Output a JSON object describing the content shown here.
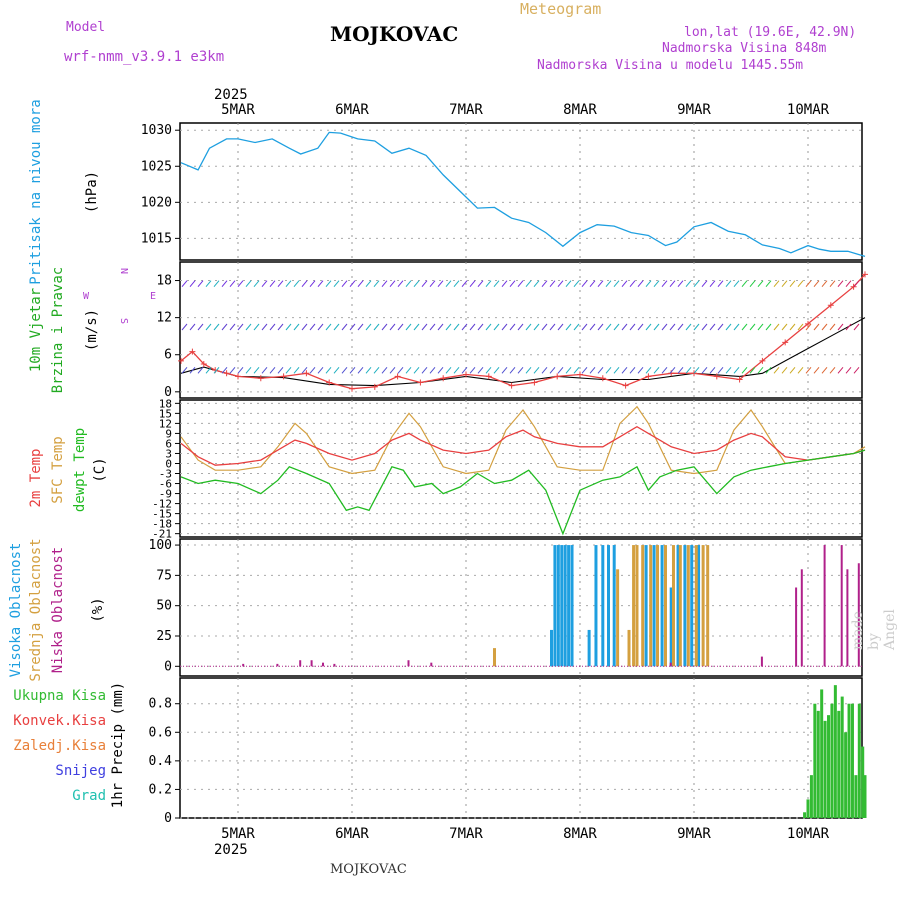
{
  "header": {
    "model_label": "Model",
    "model_name": "wrf-nmm_v3.9.1 e3km",
    "station": "MOJKOVAC",
    "meteogram": "Meteogram",
    "coords": "lon,lat (19.6E, 42.9N)",
    "elev": "Nadmorska Visina 848m",
    "elev_model": "Nadmorska Visina u modelu 1445.55m",
    "footer_station": "MOJKOVAC",
    "watermark": "made by Angel"
  },
  "colors": {
    "pressure": "#1e9fe0",
    "wind_label": "#22aa22",
    "t2m": "#e84040",
    "sfc": "#d4a040",
    "dewpt": "#22bb22",
    "high": "#1e9fe0",
    "mid": "#d4a040",
    "low": "#b0208a",
    "precip": "#33bb33",
    "conv": "#e84040",
    "frozen": "#e8803a",
    "snow": "#4040e0",
    "graup": "#20c0b0",
    "header_purple": "#b040d0",
    "header_gold": "#d8b060"
  },
  "chart_data": [
    {
      "type": "line",
      "panel": "pressure",
      "ylabel_1": "Pritisak na nivou mora",
      "ylabel_2": "(hPa)",
      "x_days": [
        "5MAR",
        "6MAR",
        "7MAR",
        "8MAR",
        "9MAR",
        "10MAR"
      ],
      "year": "2025",
      "ylim": [
        1012,
        1031
      ],
      "yticks": [
        1015,
        1020,
        1025,
        1030
      ],
      "ytick_labels": [
        "1015",
        "1020",
        "1025",
        "1030"
      ],
      "series": [
        {
          "name": "MSLP",
          "x": [
            -0.5,
            -0.35,
            -0.25,
            -0.1,
            0.0,
            0.15,
            0.3,
            0.45,
            0.55,
            0.7,
            0.8,
            0.9,
            1.05,
            1.2,
            1.35,
            1.5,
            1.65,
            1.8,
            1.95,
            2.1,
            2.25,
            2.4,
            2.55,
            2.7,
            2.85,
            3.0,
            3.15,
            3.3,
            3.45,
            3.6,
            3.75,
            3.85,
            4.0,
            4.15,
            4.3,
            4.45,
            4.6,
            4.75,
            4.85,
            5.0,
            5.1,
            5.2,
            5.35,
            5.5
          ],
          "values": [
            1025.5,
            1024.5,
            1027.5,
            1028.8,
            1028.8,
            1028.3,
            1028.8,
            1027.5,
            1026.7,
            1027.5,
            1029.7,
            1029.6,
            1028.8,
            1028.5,
            1026.8,
            1027.5,
            1026.5,
            1023.8,
            1021.5,
            1019.2,
            1019.3,
            1017.8,
            1017.2,
            1015.8,
            1013.9,
            1015.8,
            1016.9,
            1016.7,
            1015.8,
            1015.4,
            1014,
            1014.5,
            1016.6,
            1017.2,
            1016,
            1015.5,
            1014.1,
            1013.6,
            1013,
            1014,
            1013.5,
            1013.2,
            1013.2,
            1012.5
          ]
        }
      ]
    },
    {
      "type": "line",
      "panel": "wind",
      "ylabel_1": "10m Vjetar",
      "ylabel_2": "Brzina i Pravac",
      "ylabel_3": "(m/s)",
      "legend_s": "S",
      "legend_n": "N",
      "legend_w": "W",
      "legend_e": "E",
      "ylim": [
        -1,
        21
      ],
      "yticks": [
        0,
        6,
        12,
        18
      ],
      "ytick_labels": [
        "0",
        "6",
        "12",
        "18"
      ],
      "series": [
        {
          "name": "speed",
          "x": [
            -0.5,
            -0.4,
            -0.3,
            -0.2,
            -0.1,
            0.0,
            0.2,
            0.4,
            0.6,
            0.8,
            1.0,
            1.2,
            1.4,
            1.6,
            1.8,
            2.0,
            2.2,
            2.4,
            2.6,
            2.8,
            3.0,
            3.2,
            3.4,
            3.6,
            3.8,
            4.0,
            4.2,
            4.4,
            4.6,
            4.8,
            5.0,
            5.2,
            5.4,
            5.5
          ],
          "values": [
            5,
            6.5,
            4.5,
            3.5,
            3,
            2.5,
            2.2,
            2.5,
            3,
            1.5,
            0.5,
            0.8,
            2.5,
            1.5,
            2.2,
            2.8,
            2.5,
            1,
            1.5,
            2.5,
            2.8,
            2.2,
            1,
            2.5,
            3,
            3,
            2.5,
            2,
            5,
            8,
            11,
            14,
            17,
            19
          ]
        },
        {
          "name": "gust",
          "x": [
            -0.5,
            -0.3,
            0.0,
            0.4,
            0.8,
            1.2,
            1.6,
            2.0,
            2.4,
            2.8,
            3.2,
            3.6,
            4.0,
            4.4,
            4.6,
            4.8,
            5.0,
            5.2,
            5.4,
            5.5
          ],
          "values": [
            3,
            4,
            2.5,
            2.3,
            1.2,
            1,
            1.5,
            2.5,
            1.5,
            2.5,
            2,
            2,
            3,
            2.5,
            3,
            5,
            7,
            9,
            11,
            12
          ]
        }
      ]
    },
    {
      "type": "line",
      "panel": "temperature",
      "ylabel_1": "2m Temp",
      "ylabel_2": "SFC Temp",
      "ylabel_3": "dewpt Temp",
      "ylabel_4": "(C)",
      "ylim": [
        -22,
        19
      ],
      "yticks": [
        -21,
        -18,
        -15,
        -12,
        -9,
        -6,
        -3,
        0,
        3,
        6,
        9,
        12,
        15,
        18
      ],
      "ytick_labels": [
        "-21",
        "-18",
        "-15",
        "-12",
        "-9",
        "-6",
        "-3",
        "0",
        "3",
        "6",
        "9",
        "12",
        "15",
        "18"
      ],
      "series": [
        {
          "name": "2m Temp",
          "x": [
            -0.5,
            -0.35,
            -0.2,
            0.0,
            0.2,
            0.35,
            0.5,
            0.6,
            0.8,
            1.0,
            1.2,
            1.35,
            1.5,
            1.6,
            1.8,
            2.0,
            2.2,
            2.35,
            2.5,
            2.6,
            2.8,
            3.0,
            3.2,
            3.35,
            3.5,
            3.6,
            3.8,
            4.0,
            4.2,
            4.35,
            4.5,
            4.6,
            4.8,
            5.0,
            5.2,
            5.4,
            5.5
          ],
          "values": [
            6,
            2,
            -0.5,
            0,
            1,
            4,
            7,
            6,
            3,
            1,
            3,
            7,
            9,
            7,
            4,
            3,
            4,
            8,
            10,
            8,
            6,
            5,
            5,
            8,
            11,
            9,
            5,
            3,
            4,
            7,
            9,
            8,
            2,
            1,
            2,
            3,
            4
          ]
        },
        {
          "name": "SFC Temp",
          "x": [
            -0.5,
            -0.35,
            -0.2,
            0.0,
            0.2,
            0.35,
            0.5,
            0.6,
            0.8,
            1.0,
            1.2,
            1.35,
            1.5,
            1.6,
            1.8,
            2.0,
            2.2,
            2.35,
            2.5,
            2.6,
            2.8,
            3.0,
            3.2,
            3.35,
            3.5,
            3.6,
            3.8,
            4.0,
            4.2,
            4.35,
            4.5,
            4.6,
            4.8,
            5.0,
            5.2,
            5.4,
            5.5
          ],
          "values": [
            8,
            1,
            -2,
            -2,
            -1,
            5,
            12,
            9,
            -1,
            -3,
            -2,
            8,
            15,
            11,
            -1,
            -3,
            -2,
            10,
            16,
            11,
            -1,
            -2,
            -2,
            12,
            17,
            12,
            -2,
            -3,
            -2,
            10,
            16,
            11,
            0,
            1,
            2,
            3,
            5
          ]
        },
        {
          "name": "dewpt Temp",
          "x": [
            -0.5,
            -0.35,
            -0.2,
            0.0,
            0.2,
            0.35,
            0.45,
            0.6,
            0.8,
            0.95,
            1.05,
            1.15,
            1.35,
            1.45,
            1.55,
            1.7,
            1.8,
            1.95,
            2.1,
            2.25,
            2.4,
            2.55,
            2.7,
            2.85,
            3.0,
            3.2,
            3.35,
            3.5,
            3.6,
            3.7,
            3.85,
            4.0,
            4.2,
            4.35,
            4.5,
            4.65,
            4.8,
            5.0,
            5.2,
            5.4,
            5.5
          ],
          "values": [
            -4,
            -6,
            -5,
            -6,
            -9,
            -5,
            -1,
            -3,
            -6,
            -14,
            -13,
            -14,
            -1,
            -2,
            -7,
            -6,
            -9,
            -7,
            -3,
            -6,
            -5,
            -2,
            -8,
            -21,
            -8,
            -5,
            -4,
            -1,
            -8,
            -4,
            -2,
            -1,
            -9,
            -4,
            -2,
            -1,
            0,
            1,
            2,
            3,
            4
          ]
        }
      ]
    },
    {
      "type": "bar",
      "panel": "clouds",
      "ylabel_1": "Visoka Oblacnost",
      "ylabel_2": "Srednja Oblacnost",
      "ylabel_3": "Niska Oblacnost",
      "ylabel_4": "(%)",
      "ylim": [
        -8,
        105
      ],
      "yticks": [
        0,
        25,
        50,
        75,
        100
      ],
      "ytick_labels": [
        "0",
        "25",
        "50",
        "75",
        "100"
      ],
      "series": [
        {
          "name": "Visoka",
          "x": [
            2.75,
            2.78,
            2.81,
            2.84,
            2.87,
            2.9,
            2.93,
            3.08,
            3.14,
            3.2,
            3.25,
            3.3,
            3.58,
            3.65,
            3.72,
            3.8,
            3.86,
            3.92,
            3.98,
            4.04
          ],
          "values": [
            30,
            100,
            100,
            100,
            100,
            100,
            100,
            30,
            100,
            100,
            100,
            100,
            100,
            100,
            100,
            65,
            100,
            100,
            100,
            100
          ]
        },
        {
          "name": "Srednja",
          "x": [
            2.25,
            3.33,
            3.43,
            3.47,
            3.5,
            3.55,
            3.62,
            3.68,
            3.75,
            3.82,
            3.88,
            3.95,
            4.02,
            4.08,
            4.12
          ],
          "values": [
            15,
            80,
            30,
            100,
            100,
            100,
            100,
            100,
            100,
            100,
            100,
            100,
            100,
            100,
            100
          ]
        },
        {
          "name": "Niska",
          "x": [
            0.05,
            0.35,
            0.55,
            0.65,
            0.75,
            0.85,
            1.5,
            1.7,
            3.8,
            4.6,
            4.9,
            4.95,
            5.15,
            5.3,
            5.35,
            5.45
          ],
          "values": [
            2,
            2,
            5,
            5,
            3,
            2,
            5,
            3,
            3,
            8,
            65,
            80,
            100,
            100,
            80,
            85
          ]
        }
      ]
    },
    {
      "type": "bar",
      "panel": "precip",
      "ylabel_main": "1hr Precip (mm)",
      "ylabel_1": "Ukupna Kisa",
      "ylabel_2": "Konvek.Kisa",
      "ylabel_3": "Zaledj.Kisa",
      "ylabel_4": "Snijeg",
      "ylabel_5": "Grad",
      "ylim": [
        0,
        0.98
      ],
      "yticks": [
        0,
        0.2,
        0.4,
        0.6,
        0.8
      ],
      "ytick_labels": [
        "0",
        "0.2",
        "0.4",
        "0.6",
        "0.8"
      ],
      "series": [
        {
          "name": "Ukupna",
          "x": [
            4.97,
            5.0,
            5.03,
            5.06,
            5.09,
            5.12,
            5.15,
            5.18,
            5.21,
            5.24,
            5.27,
            5.3,
            5.33,
            5.36,
            5.39,
            5.42,
            5.45,
            5.48,
            5.5
          ],
          "values": [
            0.04,
            0.13,
            0.3,
            0.8,
            0.75,
            0.9,
            0.68,
            0.72,
            0.8,
            0.93,
            0.75,
            0.85,
            0.6,
            0.8,
            0.8,
            0.3,
            0.8,
            0.5,
            0.3
          ]
        }
      ]
    }
  ]
}
